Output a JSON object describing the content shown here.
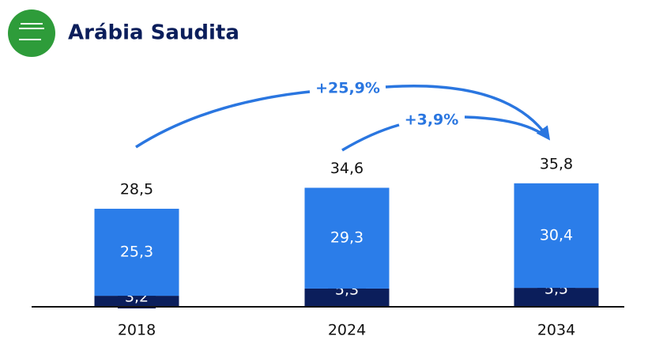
{
  "chart_data": {
    "type": "stacked_bar",
    "title": "Arábia Saudita",
    "categories": [
      "2018",
      "2024",
      "2034"
    ],
    "series": [
      {
        "color": "#0b1e5b",
        "values": [
          3.2,
          5.3,
          5.5
        ],
        "value_labels": [
          "3,2",
          "5,3",
          "5,5"
        ]
      },
      {
        "color": "#2b7de9",
        "values": [
          25.3,
          29.3,
          30.4
        ],
        "value_labels": [
          "25,3",
          "29,3",
          "30,4"
        ]
      }
    ],
    "totals": {
      "values": [
        28.5,
        34.6,
        35.8
      ],
      "value_labels": [
        "28,5",
        "34,6",
        "35,8"
      ]
    },
    "annotations": [
      "+25,9%",
      "+3,9%"
    ]
  }
}
